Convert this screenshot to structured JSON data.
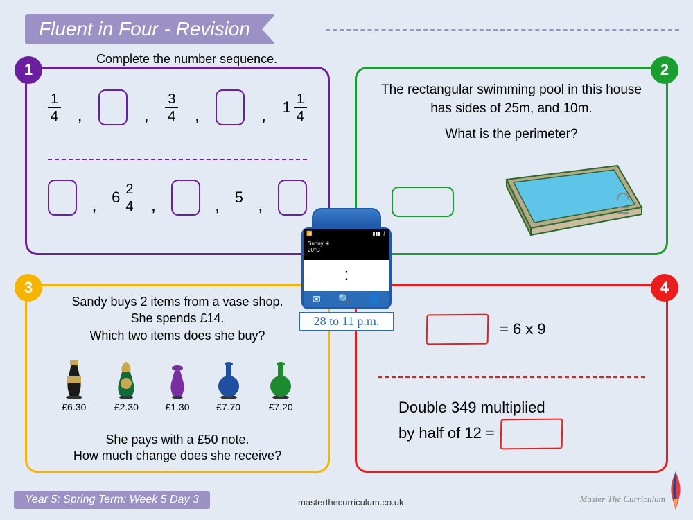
{
  "title": "Fluent in Four - Revision",
  "colors": {
    "page_bg": "#e4eaf3",
    "banner": "#9b91c5",
    "box1": "#6b1f9e",
    "box2": "#1a9e2f",
    "box3": "#f5b400",
    "box4": "#ea1c1c",
    "phone_blue": "#1e5aa8"
  },
  "box1": {
    "number": "1",
    "instruction": "Complete the number sequence.",
    "seq1": {
      "f1": {
        "n": "1",
        "d": "4"
      },
      "f2": {
        "n": "3",
        "d": "4"
      },
      "mixed": {
        "whole": "1",
        "n": "1",
        "d": "4"
      }
    },
    "seq2": {
      "mixed": {
        "whole": "6",
        "n": "2",
        "d": "4"
      },
      "plain": "5"
    }
  },
  "box2": {
    "number": "2",
    "line1": "The rectangular swimming pool in this house has sides of 25m, and 10m.",
    "question": "What is the perimeter?",
    "pool": {
      "water": "#5ec4e8",
      "edge": "#b8a88c",
      "outline": "#2a6b2a"
    }
  },
  "box3": {
    "number": "3",
    "line1": "Sandy buys 2 items from a vase shop.",
    "line2": "She spends £14.",
    "line3": "Which two items does she buy?",
    "vases": [
      {
        "price": "£6.30",
        "fill": "#1a1a1a",
        "accent": "#c9a94f"
      },
      {
        "price": "£2.30",
        "fill": "#0e6b3b",
        "accent": "#c9a94f"
      },
      {
        "price": "£1.30",
        "fill": "#7a2fa0",
        "accent": "#7a2fa0"
      },
      {
        "price": "£7.70",
        "fill": "#1e4fa0",
        "accent": "#1e4fa0"
      },
      {
        "price": "£7.20",
        "fill": "#1e8a2f",
        "accent": "#1e8a2f"
      }
    ],
    "line4": "She pays with a £50 note.",
    "line5": "How much change does she receive?"
  },
  "box4": {
    "number": "4",
    "eq1_rhs": "= 6 x 9",
    "eq2_line1": "Double 349 multiplied",
    "eq2_line2": "by half of 12 ="
  },
  "phone": {
    "weather_label": "Sunny",
    "temp": "20°C",
    "time_display": ":",
    "caption": "28 to 11 p.m.",
    "dock_icons": [
      "✉",
      "🔍",
      "👤"
    ]
  },
  "footer": {
    "banner": "Year 5: Spring Term: Week 5 Day 3",
    "url": "masterthecurriculum.co.uk",
    "brand": "Master The Curriculum"
  }
}
